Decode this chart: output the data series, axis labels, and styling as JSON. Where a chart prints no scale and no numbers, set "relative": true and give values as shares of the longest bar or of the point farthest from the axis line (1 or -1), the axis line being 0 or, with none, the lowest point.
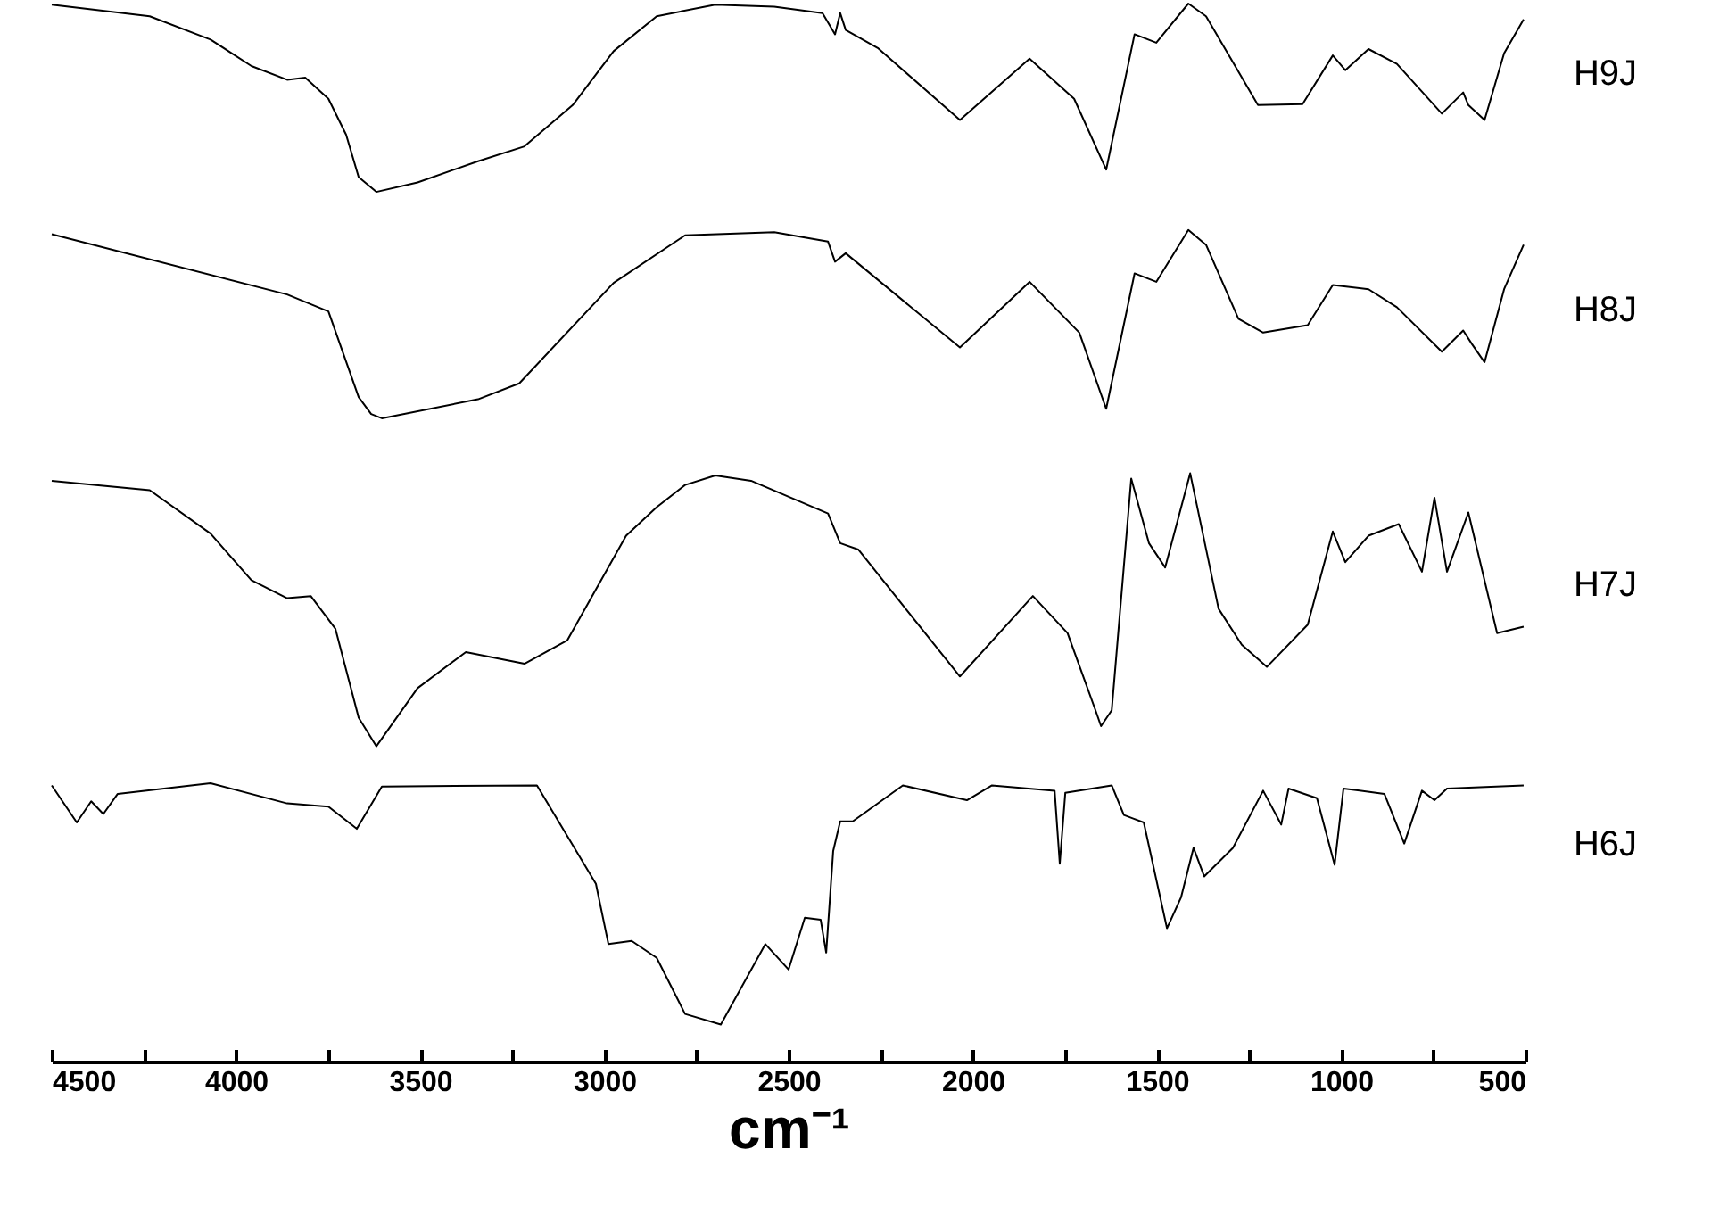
{
  "chart_data": {
    "type": "line",
    "relative": true,
    "xlabel": "cm⁻¹",
    "xlim": [
      4500,
      500
    ],
    "xticks": [
      4500,
      {
        "value": 4250,
        "label": null
      },
      4000,
      {
        "value": 3750,
        "label": null
      },
      3500,
      {
        "value": 3250,
        "label": null
      },
      3000,
      {
        "value": 2750,
        "label": null
      },
      2500,
      {
        "value": 2250,
        "label": null
      },
      2000,
      {
        "value": 1750,
        "label": null
      },
      1500,
      {
        "value": 1250,
        "label": null
      },
      1000,
      {
        "value": 750,
        "label": null
      },
      500
    ],
    "line_style": "solid",
    "series": [
      {
        "name": "H9J",
        "color": "#000000",
        "x": [
          4500,
          4234,
          4069,
          3958,
          3861,
          3812,
          3749,
          3701,
          3667,
          3619,
          3507,
          3343,
          3217,
          3086,
          2975,
          2858,
          2699,
          2539,
          2408,
          2374,
          2360,
          2345,
          2258,
          2035,
          1846,
          1725,
          1638,
          1561,
          1502,
          1415,
          1367,
          1226,
          1105,
          1023,
          989,
          926,
          849,
          727,
          669,
          655,
          611,
          558,
          505
        ],
        "values": [
          0.999,
          0.988,
          0.966,
          0.941,
          0.928,
          0.93,
          0.91,
          0.876,
          0.836,
          0.822,
          0.831,
          0.851,
          0.865,
          0.904,
          0.955,
          0.988,
          0.999,
          0.997,
          0.991,
          0.971,
          0.991,
          0.975,
          0.958,
          0.89,
          0.948,
          0.91,
          0.843,
          0.971,
          0.963,
          1,
          0.988,
          0.904,
          0.905,
          0.951,
          0.937,
          0.957,
          0.943,
          0.896,
          0.916,
          0.904,
          0.89,
          0.953,
          0.985
        ]
      },
      {
        "name": "H8J",
        "color": "#000000",
        "x": [
          4500,
          3861,
          3749,
          3667,
          3633,
          3604,
          3343,
          3231,
          2975,
          2781,
          2539,
          2393,
          2374,
          2345,
          2035,
          1846,
          1711,
          1638,
          1561,
          1502,
          1415,
          1367,
          1279,
          1212,
          1091,
          1023,
          926,
          849,
          727,
          669,
          645,
          611,
          558,
          505
        ],
        "values": [
          0.782,
          0.725,
          0.709,
          0.628,
          0.612,
          0.608,
          0.626,
          0.641,
          0.736,
          0.781,
          0.784,
          0.775,
          0.756,
          0.764,
          0.675,
          0.737,
          0.689,
          0.617,
          0.745,
          0.737,
          0.786,
          0.772,
          0.702,
          0.689,
          0.696,
          0.734,
          0.73,
          0.713,
          0.671,
          0.691,
          0.678,
          0.661,
          0.73,
          0.772
        ]
      },
      {
        "name": "H7J",
        "color": "#000000",
        "x": [
          4500,
          4234,
          4069,
          3958,
          3861,
          3797,
          3730,
          3667,
          3619,
          3507,
          3376,
          3217,
          3101,
          2941,
          2858,
          2781,
          2699,
          2602,
          2393,
          2360,
          2311,
          2035,
          1837,
          1743,
          1667,
          1652,
          1623,
          1570,
          1522,
          1478,
          1410,
          1333,
          1270,
          1202,
          1091,
          1023,
          989,
          926,
          844,
          781,
          747,
          713,
          655,
          577,
          505
        ],
        "values": [
          0.549,
          0.54,
          0.499,
          0.455,
          0.438,
          0.44,
          0.409,
          0.325,
          0.298,
          0.353,
          0.387,
          0.376,
          0.398,
          0.497,
          0.524,
          0.545,
          0.554,
          0.549,
          0.518,
          0.49,
          0.484,
          0.364,
          0.44,
          0.405,
          0.332,
          0.317,
          0.332,
          0.551,
          0.49,
          0.467,
          0.556,
          0.428,
          0.394,
          0.373,
          0.413,
          0.501,
          0.472,
          0.497,
          0.508,
          0.463,
          0.533,
          0.463,
          0.519,
          0.405,
          0.411
        ]
      },
      {
        "name": "H6J",
        "color": "#000000",
        "x": [
          4500,
          4432,
          4393,
          4360,
          4321,
          4069,
          3861,
          3749,
          3672,
          3604,
          3183,
          3023,
          2989,
          2926,
          2858,
          2781,
          2684,
          2563,
          2500,
          2456,
          2413,
          2398,
          2379,
          2360,
          2326,
          2190,
          2016,
          1948,
          1778,
          1764,
          1749,
          1623,
          1590,
          1536,
          1473,
          1435,
          1401,
          1372,
          1294,
          1212,
          1163,
          1143,
          1066,
          1018,
          994,
          883,
          829,
          781,
          747,
          713,
          505
        ],
        "values": [
          0.261,
          0.226,
          0.246,
          0.234,
          0.253,
          0.263,
          0.244,
          0.241,
          0.22,
          0.26,
          0.261,
          0.168,
          0.111,
          0.114,
          0.098,
          0.045,
          0.035,
          0.111,
          0.087,
          0.136,
          0.134,
          0.103,
          0.199,
          0.227,
          0.227,
          0.261,
          0.247,
          0.261,
          0.256,
          0.187,
          0.254,
          0.261,
          0.233,
          0.226,
          0.126,
          0.155,
          0.202,
          0.175,
          0.202,
          0.256,
          0.224,
          0.258,
          0.249,
          0.186,
          0.258,
          0.253,
          0.206,
          0.256,
          0.247,
          0.258,
          0.261
        ]
      }
    ]
  }
}
